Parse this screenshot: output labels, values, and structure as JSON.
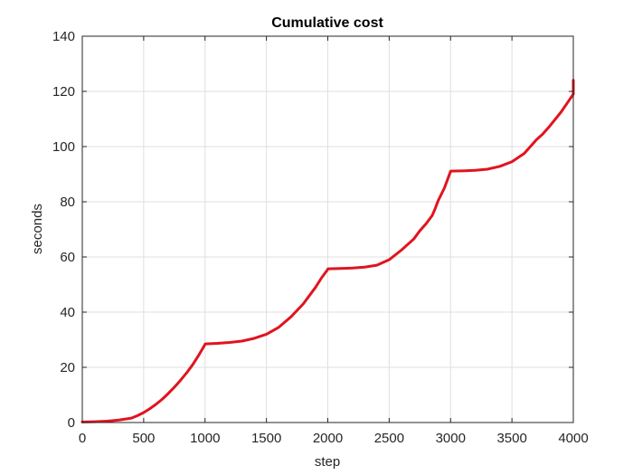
{
  "chart_data": {
    "type": "line",
    "title": "Cumulative cost",
    "xlabel": "step",
    "ylabel": "seconds",
    "xlim": [
      0,
      4000
    ],
    "ylim": [
      0,
      140
    ],
    "xticks": [
      0,
      500,
      1000,
      1500,
      2000,
      2500,
      3000,
      3500,
      4000
    ],
    "yticks": [
      0,
      20,
      40,
      60,
      80,
      100,
      120,
      140
    ],
    "grid": true,
    "line_color": "#e0141e",
    "series": [
      {
        "x": [
          0,
          100,
          200,
          300,
          400,
          450,
          500,
          550,
          600,
          650,
          700,
          750,
          800,
          850,
          900,
          950,
          1000,
          1001,
          1100,
          1200,
          1300,
          1400,
          1500,
          1600,
          1700,
          1800,
          1900,
          1950,
          2000,
          2001,
          2100,
          2200,
          2300,
          2400,
          2500,
          2600,
          2700,
          2750,
          2800,
          2850,
          2870,
          2900,
          2950,
          3000,
          3001,
          3100,
          3200,
          3300,
          3400,
          3500,
          3600,
          3700,
          3750,
          3800,
          3900,
          4000,
          4000
        ],
        "y": [
          0.2,
          0.3,
          0.5,
          0.9,
          1.6,
          2.5,
          3.6,
          5.0,
          6.6,
          8.4,
          10.5,
          12.8,
          15.3,
          18.0,
          21.0,
          24.5,
          28.3,
          28.5,
          28.7,
          29.0,
          29.5,
          30.5,
          32.0,
          34.5,
          38.3,
          43.0,
          49.0,
          52.5,
          55.5,
          55.7,
          55.8,
          56.0,
          56.3,
          57.0,
          59.0,
          62.5,
          66.5,
          69.5,
          72.0,
          75.0,
          77.0,
          80.5,
          85.0,
          91.0,
          91.1,
          91.2,
          91.4,
          91.8,
          92.8,
          94.5,
          97.5,
          102.5,
          104.5,
          107.0,
          112.5,
          119.0,
          124.0
        ]
      }
    ]
  }
}
